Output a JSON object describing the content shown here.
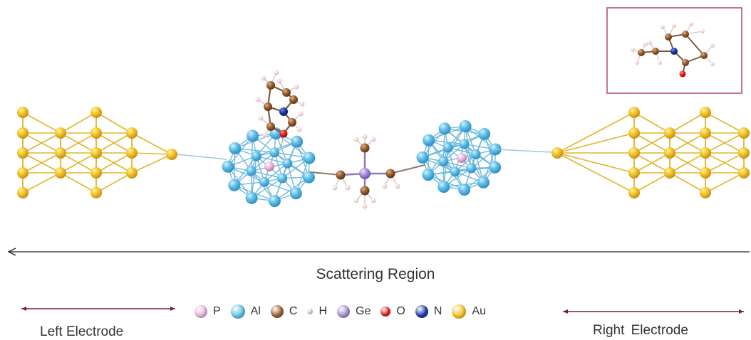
{
  "labels": {
    "scattering_region": "Scattering Region",
    "left_electrode": "Left Electrode",
    "right_electrode": "Right Electrode"
  },
  "legend": [
    {
      "symbol": "P",
      "color": "#e7b6d9",
      "size": 18
    },
    {
      "symbol": "Al",
      "color": "#63c0e8",
      "size": 20
    },
    {
      "symbol": "C",
      "color": "#9a6233",
      "size": 18
    },
    {
      "symbol": "H",
      "color": "#f3dcdc",
      "size": 8
    },
    {
      "symbol": "Ge",
      "color": "#a58ed8",
      "size": 18
    },
    {
      "symbol": "O",
      "color": "#e8201e",
      "size": 14
    },
    {
      "symbol": "N",
      "color": "#1f3aa8",
      "size": 18
    },
    {
      "symbol": "Au",
      "color": "#f2c228",
      "size": 20
    }
  ],
  "colors": {
    "au": "#f2c228",
    "al": "#63c0e8",
    "carbon": "#9a6233",
    "hydrogen": "#f3dcdc",
    "germanium": "#a58ed8",
    "phosphorus": "#e7b6d9",
    "oxygen": "#e8201e",
    "nitrogen": "#1f3aa8",
    "electrode_arrow": "#7a1f2b",
    "inset_border": "#b44a5d"
  }
}
